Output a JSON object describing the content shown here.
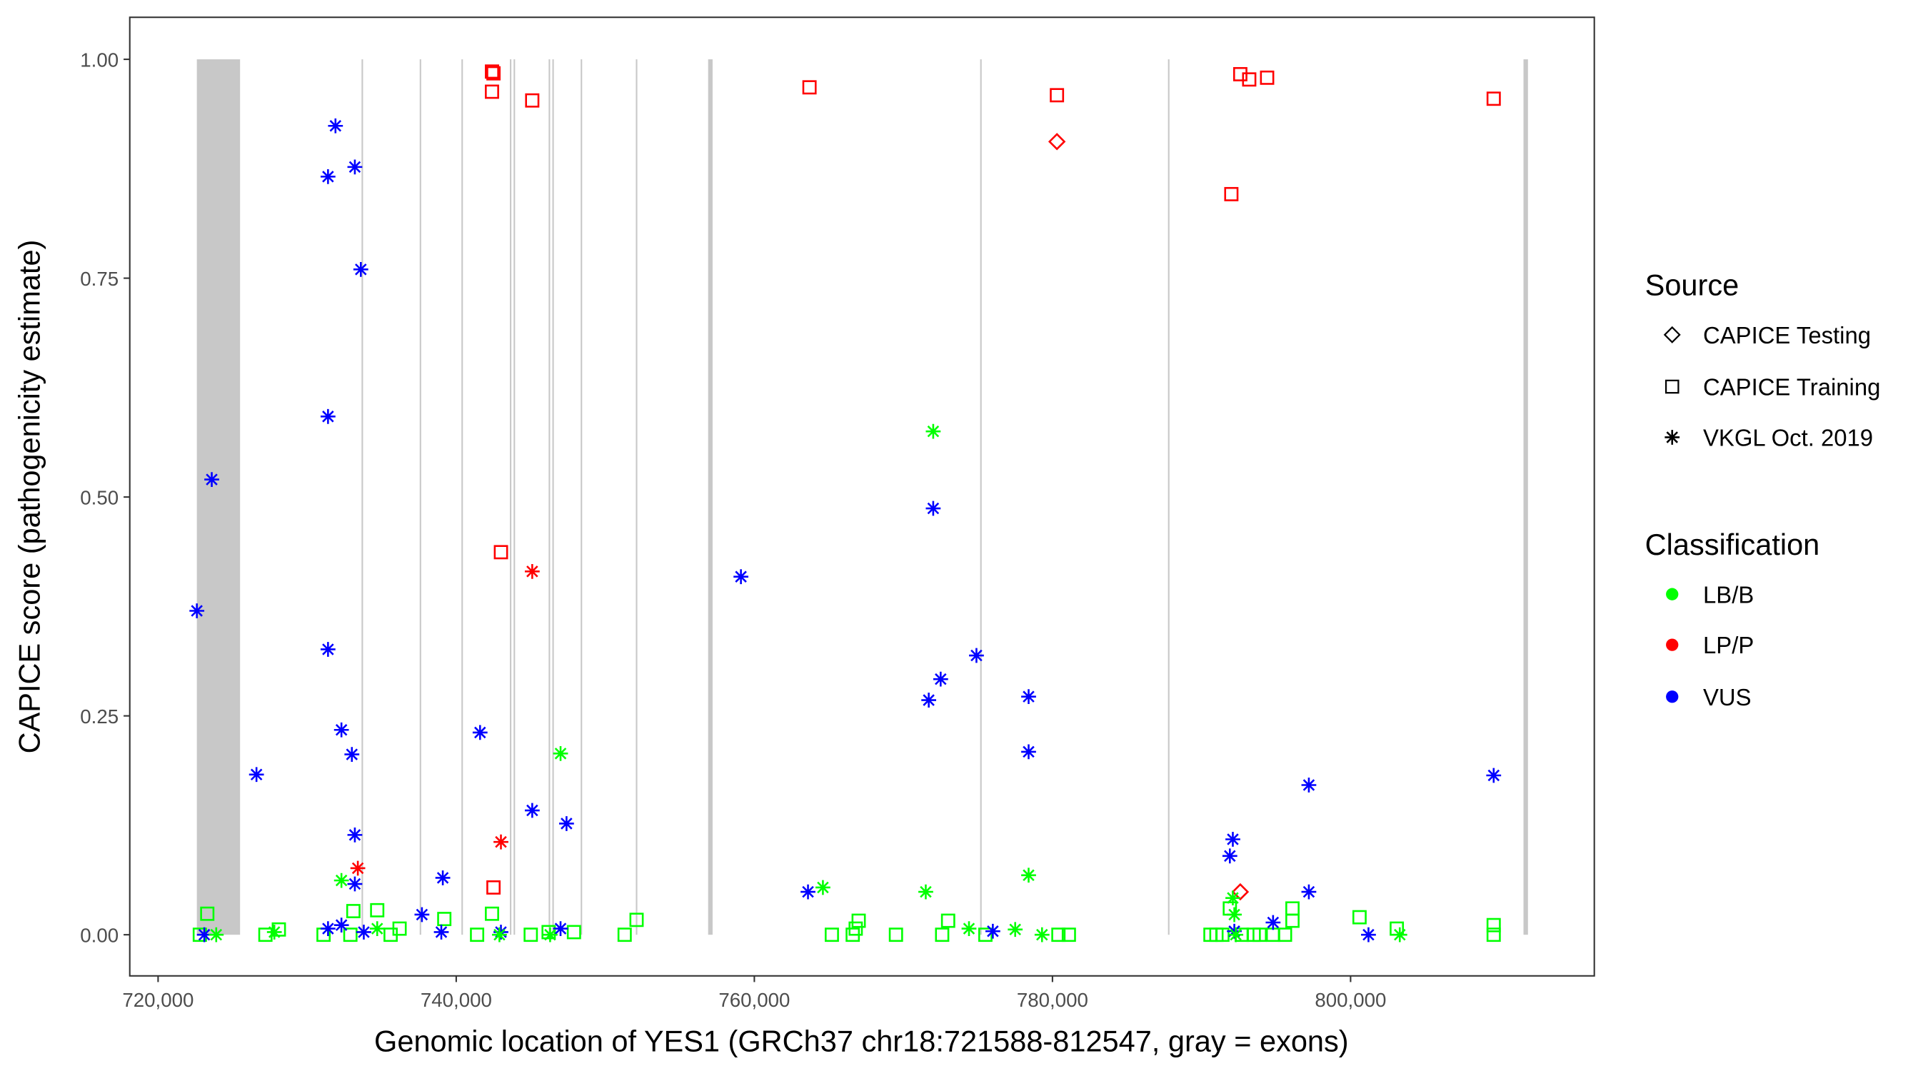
{
  "chart_data": {
    "type": "scatter",
    "title": "",
    "xlabel": "Genomic location of YES1 (GRCh37 chr18:721588-812547, gray = exons)",
    "ylabel": "CAPICE score (pathogenicity estimate)",
    "xlim": [
      718100,
      816350
    ],
    "ylim": [
      -0.047,
      1.048
    ],
    "x_ticks": [
      720000,
      740000,
      760000,
      780000,
      800000
    ],
    "x_tick_labels": [
      "720,000",
      "740,000",
      "760,000",
      "780,000",
      "800,000"
    ],
    "y_ticks": [
      0,
      0.25,
      0.5,
      0.75,
      1.0
    ],
    "y_tick_labels": [
      "0.00",
      "0.25",
      "0.50",
      "0.75",
      "1.00"
    ],
    "grid": false,
    "legend_position": "right",
    "legend": {
      "source_title": "Source",
      "sources": [
        {
          "code": "T",
          "label": "CAPICE Testing",
          "shape": "diamond"
        },
        {
          "code": "R",
          "label": "CAPICE Training",
          "shape": "square"
        },
        {
          "code": "V",
          "label": "VKGL Oct. 2019",
          "shape": "asterisk"
        }
      ],
      "classification_title": "Classification",
      "classes": [
        {
          "code": "LB/B",
          "label": "LB/B",
          "color": "#00ff00"
        },
        {
          "code": "LP/P",
          "label": "LP/P",
          "color": "#ff0000"
        },
        {
          "code": "VUS",
          "label": "VUS",
          "color": "#0000ff"
        }
      ]
    },
    "exons": [
      [
        722600,
        725500
      ],
      [
        733650,
        733750
      ],
      [
        737550,
        737650
      ],
      [
        740350,
        740450
      ],
      [
        743600,
        743700
      ],
      [
        743850,
        743950
      ],
      [
        746200,
        746300
      ],
      [
        746450,
        746550
      ],
      [
        748350,
        748450
      ],
      [
        752050,
        752150
      ],
      [
        756900,
        757200
      ],
      [
        775150,
        775250
      ],
      [
        787750,
        787850
      ],
      [
        811600,
        811900
      ]
    ],
    "point_fields": [
      "position",
      "score",
      "source",
      "classification"
    ],
    "points": [
      [
        742400,
        0.986,
        "R",
        "LP/P"
      ],
      [
        742500,
        0.984,
        "R",
        "LP/P"
      ],
      [
        742400,
        0.963,
        "R",
        "LP/P"
      ],
      [
        745100,
        0.953,
        "R",
        "LP/P"
      ],
      [
        763700,
        0.968,
        "R",
        "LP/P"
      ],
      [
        780300,
        0.959,
        "R",
        "LP/P"
      ],
      [
        792600,
        0.983,
        "R",
        "LP/P"
      ],
      [
        793200,
        0.977,
        "R",
        "LP/P"
      ],
      [
        794400,
        0.979,
        "R",
        "LP/P"
      ],
      [
        792000,
        0.846,
        "R",
        "LP/P"
      ],
      [
        809600,
        0.955,
        "R",
        "LP/P"
      ],
      [
        743000,
        0.437,
        "R",
        "LP/P"
      ],
      [
        742500,
        0.054,
        "R",
        "LP/P"
      ],
      [
        780300,
        0.906,
        "T",
        "LP/P"
      ],
      [
        792600,
        0.049,
        "T",
        "LP/P"
      ],
      [
        745100,
        0.415,
        "V",
        "LP/P"
      ],
      [
        743000,
        0.106,
        "V",
        "LP/P"
      ],
      [
        733400,
        0.076,
        "V",
        "LP/P"
      ],
      [
        731900,
        0.924,
        "V",
        "VUS"
      ],
      [
        733200,
        0.877,
        "V",
        "VUS"
      ],
      [
        731400,
        0.866,
        "V",
        "VUS"
      ],
      [
        733600,
        0.76,
        "V",
        "VUS"
      ],
      [
        731400,
        0.592,
        "V",
        "VUS"
      ],
      [
        723600,
        0.52,
        "V",
        "VUS"
      ],
      [
        722600,
        0.37,
        "V",
        "VUS"
      ],
      [
        731400,
        0.326,
        "V",
        "VUS"
      ],
      [
        732300,
        0.234,
        "V",
        "VUS"
      ],
      [
        733000,
        0.206,
        "V",
        "VUS"
      ],
      [
        726600,
        0.183,
        "V",
        "VUS"
      ],
      [
        733200,
        0.114,
        "V",
        "VUS"
      ],
      [
        733200,
        0.058,
        "V",
        "VUS"
      ],
      [
        739100,
        0.065,
        "V",
        "VUS"
      ],
      [
        741600,
        0.231,
        "V",
        "VUS"
      ],
      [
        745100,
        0.142,
        "V",
        "VUS"
      ],
      [
        747400,
        0.127,
        "V",
        "VUS"
      ],
      [
        737700,
        0.023,
        "V",
        "VUS"
      ],
      [
        731400,
        0.007,
        "V",
        "VUS"
      ],
      [
        732300,
        0.011,
        "V",
        "VUS"
      ],
      [
        733800,
        0.003,
        "V",
        "VUS"
      ],
      [
        739000,
        0.003,
        "V",
        "VUS"
      ],
      [
        743000,
        0.003,
        "V",
        "VUS"
      ],
      [
        747000,
        0.007,
        "V",
        "VUS"
      ],
      [
        759100,
        0.409,
        "V",
        "VUS"
      ],
      [
        763600,
        0.049,
        "V",
        "VUS"
      ],
      [
        772000,
        0.487,
        "V",
        "VUS"
      ],
      [
        774900,
        0.319,
        "V",
        "VUS"
      ],
      [
        772500,
        0.292,
        "V",
        "VUS"
      ],
      [
        771700,
        0.268,
        "V",
        "VUS"
      ],
      [
        778400,
        0.272,
        "V",
        "VUS"
      ],
      [
        778400,
        0.209,
        "V",
        "VUS"
      ],
      [
        776000,
        0.004,
        "V",
        "VUS"
      ],
      [
        792100,
        0.109,
        "V",
        "VUS"
      ],
      [
        791900,
        0.09,
        "V",
        "VUS"
      ],
      [
        794800,
        0.014,
        "V",
        "VUS"
      ],
      [
        797200,
        0.171,
        "V",
        "VUS"
      ],
      [
        797200,
        0.049,
        "V",
        "VUS"
      ],
      [
        792200,
        0.004,
        "V",
        "VUS"
      ],
      [
        801200,
        0.0,
        "V",
        "VUS"
      ],
      [
        809600,
        0.182,
        "V",
        "VUS"
      ],
      [
        723100,
        0.0,
        "V",
        "VUS"
      ],
      [
        732300,
        0.062,
        "V",
        "LB/B"
      ],
      [
        747000,
        0.207,
        "V",
        "LB/B"
      ],
      [
        772000,
        0.575,
        "V",
        "LB/B"
      ],
      [
        764600,
        0.054,
        "V",
        "LB/B"
      ],
      [
        771500,
        0.049,
        "V",
        "LB/B"
      ],
      [
        778400,
        0.068,
        "V",
        "LB/B"
      ],
      [
        792100,
        0.042,
        "V",
        "LB/B"
      ],
      [
        792200,
        0.023,
        "V",
        "LB/B"
      ],
      [
        723900,
        0.0,
        "V",
        "LB/B"
      ],
      [
        727800,
        0.003,
        "V",
        "LB/B"
      ],
      [
        734700,
        0.007,
        "V",
        "LB/B"
      ],
      [
        742900,
        0.0,
        "V",
        "LB/B"
      ],
      [
        746300,
        0.0,
        "V",
        "LB/B"
      ],
      [
        774400,
        0.007,
        "V",
        "LB/B"
      ],
      [
        777500,
        0.006,
        "V",
        "LB/B"
      ],
      [
        779300,
        0.0,
        "V",
        "LB/B"
      ],
      [
        803300,
        0.0,
        "V",
        "LB/B"
      ],
      [
        792300,
        0.0,
        "V",
        "LB/B"
      ],
      [
        723300,
        0.024,
        "R",
        "LB/B"
      ],
      [
        733100,
        0.027,
        "R",
        "LB/B"
      ],
      [
        734700,
        0.028,
        "R",
        "LB/B"
      ],
      [
        739200,
        0.018,
        "R",
        "LB/B"
      ],
      [
        742400,
        0.024,
        "R",
        "LB/B"
      ],
      [
        791900,
        0.03,
        "R",
        "LB/B"
      ],
      [
        796100,
        0.03,
        "R",
        "LB/B"
      ],
      [
        796100,
        0.016,
        "R",
        "LB/B"
      ],
      [
        800600,
        0.02,
        "R",
        "LB/B"
      ],
      [
        809600,
        0.011,
        "R",
        "LB/B"
      ],
      [
        773000,
        0.016,
        "R",
        "LB/B"
      ],
      [
        767000,
        0.016,
        "R",
        "LB/B"
      ],
      [
        736200,
        0.007,
        "R",
        "LB/B"
      ],
      [
        722800,
        0.0,
        "R",
        "LB/B"
      ],
      [
        727200,
        0.0,
        "R",
        "LB/B"
      ],
      [
        731100,
        0.0,
        "R",
        "LB/B"
      ],
      [
        735600,
        0.0,
        "R",
        "LB/B"
      ],
      [
        741400,
        0.0,
        "R",
        "LB/B"
      ],
      [
        745000,
        0.0,
        "R",
        "LB/B"
      ],
      [
        747900,
        0.003,
        "R",
        "LB/B"
      ],
      [
        751300,
        0.0,
        "R",
        "LB/B"
      ],
      [
        752100,
        0.017,
        "R",
        "LB/B"
      ],
      [
        765200,
        0.0,
        "R",
        "LB/B"
      ],
      [
        766600,
        0.0,
        "R",
        "LB/B"
      ],
      [
        769500,
        0.0,
        "R",
        "LB/B"
      ],
      [
        772600,
        0.0,
        "R",
        "LB/B"
      ],
      [
        775500,
        0.0,
        "R",
        "LB/B"
      ],
      [
        780400,
        0.0,
        "R",
        "LB/B"
      ],
      [
        781100,
        0.0,
        "R",
        "LB/B"
      ],
      [
        790600,
        0.0,
        "R",
        "LB/B"
      ],
      [
        793500,
        0.0,
        "R",
        "LB/B"
      ],
      [
        795600,
        0.0,
        "R",
        "LB/B"
      ],
      [
        803100,
        0.007,
        "R",
        "LB/B"
      ],
      [
        809600,
        0.0,
        "R",
        "LB/B"
      ],
      [
        728100,
        0.006,
        "R",
        "LB/B"
      ],
      [
        732900,
        0.0,
        "R",
        "LB/B"
      ],
      [
        746200,
        0.003,
        "R",
        "LB/B"
      ],
      [
        766800,
        0.007,
        "R",
        "LB/B"
      ],
      [
        791000,
        0.0,
        "R",
        "LB/B"
      ],
      [
        791400,
        0.0,
        "R",
        "LB/B"
      ],
      [
        792700,
        0.0,
        "R",
        "LB/B"
      ],
      [
        793900,
        0.0,
        "R",
        "LB/B"
      ],
      [
        794800,
        0.0,
        "R",
        "LB/B"
      ]
    ]
  }
}
